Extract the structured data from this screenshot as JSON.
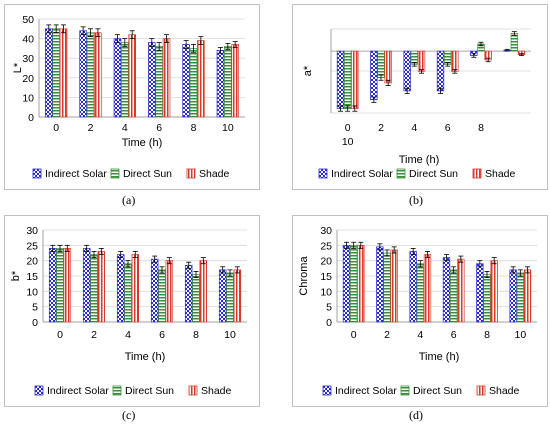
{
  "colors": {
    "indirect_solar": "#2b2bd6",
    "direct_sun": "#3a8f3a",
    "shade": "#d83a2a",
    "grid": "#d9d9d9",
    "axis": "#8c8c8c"
  },
  "legend": [
    "Indirect Solar",
    "Direct Sun",
    "Shade"
  ],
  "chart_data": [
    {
      "panel_label": "(a)",
      "type": "bar",
      "ylabel": "L*",
      "xlabel": "Time (h)",
      "categories": [
        "0",
        "2",
        "4",
        "6",
        "8",
        "10"
      ],
      "ylim": [
        0,
        50
      ],
      "yticks": [
        "0",
        "10",
        "20",
        "30",
        "40",
        "50"
      ],
      "grid": true,
      "legend_position": "bottom",
      "series": [
        {
          "name": "Indirect Solar",
          "values": [
            45,
            44,
            40,
            38,
            37,
            34
          ],
          "errors": [
            2,
            2,
            2,
            2,
            2,
            1.5
          ]
        },
        {
          "name": "Direct Sun",
          "values": [
            45,
            43,
            38,
            36,
            35,
            36
          ],
          "errors": [
            2,
            2,
            2,
            2,
            2,
            1.5
          ]
        },
        {
          "name": "Shade",
          "values": [
            45,
            43,
            42,
            40,
            39,
            37
          ],
          "errors": [
            2,
            2,
            2,
            2,
            2,
            1.5
          ]
        }
      ]
    },
    {
      "panel_label": "(b)",
      "type": "bar",
      "ylabel": "a*",
      "xlabel": "Time (h)",
      "categories": [
        "0\n10",
        "2",
        "4",
        "6",
        "8",
        ""
      ],
      "ylim": [
        -7,
        2.5
      ],
      "yticks": [],
      "grid": true,
      "legend_position": "bottom",
      "series": [
        {
          "name": "Indirect Solar",
          "values": [
            -6.5,
            -5.5,
            -4.5,
            -4.5,
            -0.5,
            0.1
          ],
          "errors": [
            0.3,
            0.3,
            0.3,
            0.3,
            0.2,
            0.1
          ]
        },
        {
          "name": "Direct Sun",
          "values": [
            -6.5,
            -3.0,
            -1.5,
            -1.5,
            0.8,
            2.0
          ],
          "errors": [
            0.3,
            0.3,
            0.2,
            0.2,
            0.2,
            0.2
          ]
        },
        {
          "name": "Shade",
          "values": [
            -6.5,
            -3.6,
            -2.3,
            -2.3,
            -1.0,
            -0.4
          ],
          "errors": [
            0.3,
            0.3,
            0.2,
            0.2,
            0.2,
            0.1
          ]
        }
      ]
    },
    {
      "panel_label": "(c)",
      "type": "bar",
      "ylabel": "b*",
      "xlabel": "Time (h)",
      "categories": [
        "0",
        "2",
        "4",
        "6",
        "8",
        "10"
      ],
      "ylim": [
        0,
        30
      ],
      "yticks": [
        "0",
        "5",
        "10",
        "15",
        "20",
        "25",
        "30"
      ],
      "grid": true,
      "legend_position": "bottom",
      "series": [
        {
          "name": "Indirect Solar",
          "values": [
            24,
            24,
            22,
            20.5,
            18.5,
            17
          ],
          "errors": [
            1,
            1,
            1,
            1,
            1,
            1
          ]
        },
        {
          "name": "Direct Sun",
          "values": [
            24,
            22,
            19,
            17,
            15.5,
            16
          ],
          "errors": [
            1,
            1,
            1,
            1,
            1,
            1
          ]
        },
        {
          "name": "Shade",
          "values": [
            24,
            23,
            22,
            20,
            20,
            17
          ],
          "errors": [
            1,
            1,
            1,
            1,
            1,
            1
          ]
        }
      ]
    },
    {
      "panel_label": "(d)",
      "type": "bar",
      "ylabel": "Chroma",
      "xlabel": "Time (h)",
      "categories": [
        "0",
        "2",
        "4",
        "6",
        "8",
        "10"
      ],
      "ylim": [
        0,
        30
      ],
      "yticks": [
        "0",
        "5",
        "10",
        "15",
        "20",
        "25",
        "30"
      ],
      "grid": true,
      "legend_position": "bottom",
      "series": [
        {
          "name": "Indirect Solar",
          "values": [
            25,
            24.5,
            23,
            21,
            19,
            17
          ],
          "errors": [
            1,
            1,
            1,
            1,
            1,
            1
          ]
        },
        {
          "name": "Direct Sun",
          "values": [
            25,
            22.5,
            19,
            17,
            15.5,
            16
          ],
          "errors": [
            1,
            1,
            1,
            1,
            1,
            1
          ]
        },
        {
          "name": "Shade",
          "values": [
            25,
            23.5,
            22,
            20.5,
            20,
            17
          ],
          "errors": [
            1,
            1,
            1,
            1,
            1,
            1
          ]
        }
      ]
    }
  ]
}
